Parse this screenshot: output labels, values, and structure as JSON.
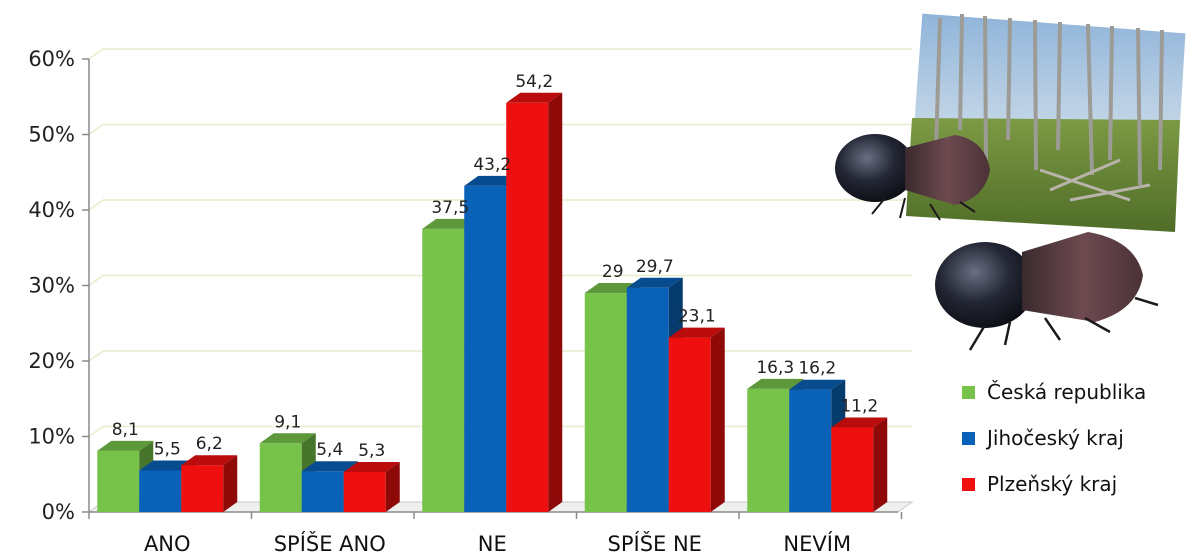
{
  "chart_data": {
    "type": "bar",
    "categories": [
      "ANO",
      "SPÍŠE ANO",
      "NE",
      "SPÍŠE NE",
      "NEVÍM"
    ],
    "series": [
      {
        "name": "Česká republika",
        "color": "#77c34a",
        "values": [
          8.1,
          9.1,
          37.5,
          29,
          16.3
        ],
        "labels": [
          "8,1",
          "9,1",
          "37,5",
          "29",
          "16,3"
        ]
      },
      {
        "name": "Jihočeský kraj",
        "color": "#0a62b8",
        "values": [
          5.5,
          5.4,
          43.2,
          29.7,
          16.2
        ],
        "labels": [
          "5,5",
          "5,4",
          "43,2",
          "29,7",
          "16,2"
        ]
      },
      {
        "name": "Plzeňský kraj",
        "color": "#ee0f0f",
        "values": [
          6.2,
          5.3,
          54.2,
          23.1,
          11.2
        ],
        "labels": [
          "6,2",
          "5,3",
          "54,2",
          "23,1",
          "11,2"
        ]
      }
    ],
    "yticks": [
      "0%",
      "10%",
      "20%",
      "30%",
      "40%",
      "50%",
      "60%"
    ],
    "ylim": [
      0,
      60
    ],
    "grid": true,
    "legend_position": "bottom-right"
  },
  "illustration": {
    "photo": "dead-spruce-forest-photo",
    "insect": "bark-beetle-icon"
  }
}
